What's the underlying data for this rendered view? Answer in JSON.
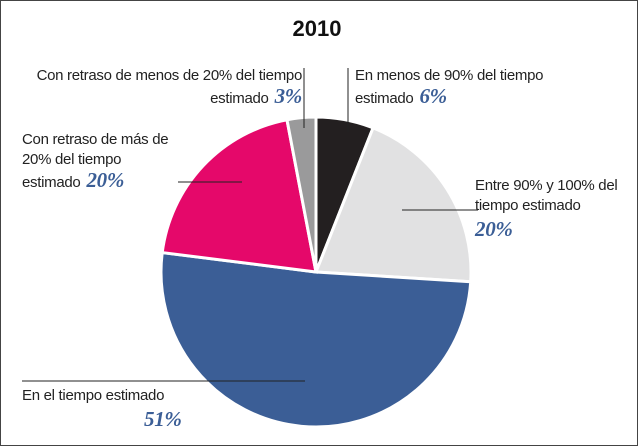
{
  "chart_data": {
    "type": "pie",
    "title": "2010",
    "categories": [
      "En menos de 90% del tiempo estimado",
      "Entre 90% y 100% del tiempo estimado",
      "En el tiempo estimado",
      "Con retraso de más de 20% del tiempo estimado",
      "Con retraso de menos de 20% del tiempo estimado"
    ],
    "values": [
      6,
      20,
      51,
      20,
      3
    ],
    "value_labels": [
      "6%",
      "20%",
      "51%",
      "20%",
      "3%"
    ],
    "colors": [
      "#231f20",
      "#e1e1e2",
      "#3b5e96",
      "#e5086a",
      "#9a9a9b"
    ]
  }
}
